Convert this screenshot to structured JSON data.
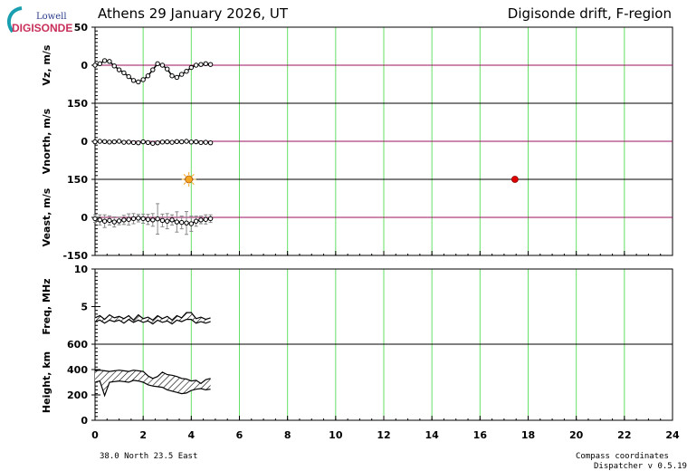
{
  "header": {
    "title_left": "Athens  29 January 2026, UT",
    "title_right": "Digisonde drift, F-region"
  },
  "logo": {
    "top": "Lowell",
    "bottom": "DIGISONDE"
  },
  "footer": {
    "location": "38.0 North   23.5 East",
    "compass": "Compass coordinates",
    "version": "Dispatcher v 0.5.19"
  },
  "colors": {
    "grid": "#66e066",
    "zero_line": "#9b1060",
    "data": "#000000",
    "error_bars": "#888888",
    "sunrise_marker": "#f5a623",
    "sunset_marker": "#e00000"
  },
  "chart_data": {
    "type": "line",
    "x": {
      "ticks": [
        0,
        2,
        4,
        6,
        8,
        10,
        12,
        14,
        16,
        18,
        20,
        22,
        24
      ],
      "range": [
        0,
        24
      ],
      "grid": true
    },
    "panels": [
      {
        "ylabel": "Vz, m/s",
        "yrange": [
          -50,
          50
        ],
        "yticks": [
          0,
          50
        ],
        "zero_line": true,
        "series": [
          {
            "x": [
              0.0,
              0.2,
              0.4,
              0.6,
              0.8,
              1.0,
              1.2,
              1.4,
              1.6,
              1.8,
              2.0,
              2.2,
              2.4,
              2.6,
              2.8,
              3.0,
              3.2,
              3.4,
              3.6,
              3.8,
              4.0,
              4.2,
              4.4,
              4.6,
              4.8
            ],
            "y": [
              0,
              2,
              6,
              5,
              -1,
              -6,
              -10,
              -15,
              -20,
              -22,
              -19,
              -14,
              -6,
              2,
              0,
              -5,
              -14,
              -16,
              -12,
              -8,
              -3,
              0,
              1,
              2,
              1
            ]
          }
        ]
      },
      {
        "ylabel": "Vnorth, m/s",
        "yrange": [
          -150,
          150
        ],
        "yticks": [
          0,
          150
        ],
        "zero_line": true,
        "series": [
          {
            "x": [
              0.0,
              0.2,
              0.4,
              0.6,
              0.8,
              1.0,
              1.2,
              1.4,
              1.6,
              1.8,
              2.0,
              2.2,
              2.4,
              2.6,
              2.8,
              3.0,
              3.2,
              3.4,
              3.6,
              3.8,
              4.0,
              4.2,
              4.4,
              4.6,
              4.8
            ],
            "y": [
              -2,
              0,
              -1,
              -3,
              -2,
              0,
              -4,
              -3,
              -5,
              -6,
              -2,
              -5,
              -8,
              -6,
              -3,
              -2,
              -4,
              -1,
              -2,
              0,
              -3,
              -2,
              -5,
              -4,
              -6
            ]
          }
        ]
      },
      {
        "ylabel": "Veast, m/s",
        "yrange": [
          -150,
          150
        ],
        "yticks": [
          -150,
          0,
          150
        ],
        "zero_line": true,
        "series": [
          {
            "x": [
              0.0,
              0.2,
              0.4,
              0.6,
              0.8,
              1.0,
              1.2,
              1.4,
              1.6,
              1.8,
              2.0,
              2.2,
              2.4,
              2.6,
              2.8,
              3.0,
              3.2,
              3.4,
              3.6,
              3.8,
              4.0,
              4.2,
              4.4,
              4.6,
              4.8
            ],
            "y": [
              -5,
              -10,
              -15,
              -12,
              -18,
              -14,
              -10,
              -8,
              -5,
              -3,
              -5,
              -8,
              -10,
              -6,
              -12,
              -15,
              -10,
              -18,
              -20,
              -22,
              -25,
              -15,
              -10,
              -8,
              -5
            ],
            "err": [
              15,
              20,
              25,
              18,
              20,
              15,
              18,
              22,
              20,
              15,
              18,
              20,
              25,
              60,
              25,
              30,
              20,
              40,
              25,
              45,
              30,
              20,
              15,
              18,
              15
            ]
          }
        ]
      },
      {
        "ylabel": "Freq, MHz",
        "yrange": [
          0,
          10
        ],
        "yticks": [
          5,
          10
        ],
        "zero_line": false,
        "series": [
          {
            "x": [
              0.0,
              0.2,
              0.4,
              0.6,
              0.8,
              1.0,
              1.2,
              1.4,
              1.6,
              1.8,
              2.0,
              2.2,
              2.4,
              2.6,
              2.8,
              3.0,
              3.2,
              3.4,
              3.6,
              3.8,
              4.0,
              4.2,
              4.4,
              4.6,
              4.8
            ],
            "y": [
              3.5,
              3.8,
              3.3,
              3.9,
              3.5,
              3.7,
              3.4,
              3.8,
              3.2,
              3.9,
              3.4,
              3.6,
              3.2,
              3.8,
              3.4,
              3.7,
              3.2,
              3.8,
              3.5,
              4.2,
              4.2,
              3.4,
              3.6,
              3.3,
              3.5
            ]
          },
          {
            "x": [
              0.0,
              0.2,
              0.4,
              0.6,
              0.8,
              1.0,
              1.2,
              1.4,
              1.6,
              1.8,
              2.0,
              2.2,
              2.4,
              2.6,
              2.8,
              3.0,
              3.2,
              3.4,
              3.6,
              3.8,
              4.0,
              4.2,
              4.4,
              4.6,
              4.8
            ],
            "y": [
              3.0,
              3.2,
              2.8,
              3.2,
              3.0,
              3.2,
              2.8,
              3.3,
              2.9,
              3.2,
              2.9,
              3.1,
              2.7,
              3.2,
              2.9,
              3.1,
              2.7,
              3.2,
              3.0,
              3.3,
              3.3,
              2.8,
              3.0,
              2.8,
              3.0
            ]
          }
        ]
      },
      {
        "ylabel": "Height, km",
        "yrange": [
          0,
          600
        ],
        "yticks": [
          0,
          200,
          400,
          600
        ],
        "zero_line": false,
        "series": [
          {
            "x": [
              0.0,
              0.2,
              0.4,
              0.6,
              0.8,
              1.0,
              1.2,
              1.4,
              1.6,
              1.8,
              2.0,
              2.2,
              2.4,
              2.6,
              2.8,
              3.0,
              3.2,
              3.4,
              3.6,
              3.8,
              4.0,
              4.2,
              4.4,
              4.6,
              4.8
            ],
            "y": [
              390,
              395,
              390,
              385,
              390,
              395,
              390,
              385,
              395,
              390,
              385,
              350,
              330,
              345,
              380,
              360,
              355,
              345,
              330,
              325,
              310,
              315,
              290,
              320,
              330
            ]
          },
          {
            "x": [
              0.0,
              0.2,
              0.4,
              0.6,
              0.8,
              1.0,
              1.2,
              1.4,
              1.6,
              1.8,
              2.0,
              2.2,
              2.4,
              2.6,
              2.8,
              3.0,
              3.2,
              3.4,
              3.6,
              3.8,
              4.0,
              4.2,
              4.4,
              4.6,
              4.8
            ],
            "y": [
              300,
              310,
              195,
              300,
              305,
              310,
              305,
              300,
              315,
              310,
              300,
              280,
              270,
              265,
              260,
              240,
              230,
              220,
              210,
              215,
              235,
              245,
              250,
              240,
              245
            ]
          }
        ]
      }
    ],
    "markers": [
      {
        "type": "sunrise",
        "x": 3.9,
        "panel": 2,
        "y": 150
      },
      {
        "type": "sunset",
        "x": 17.45,
        "panel": 2,
        "y": 150
      }
    ]
  }
}
